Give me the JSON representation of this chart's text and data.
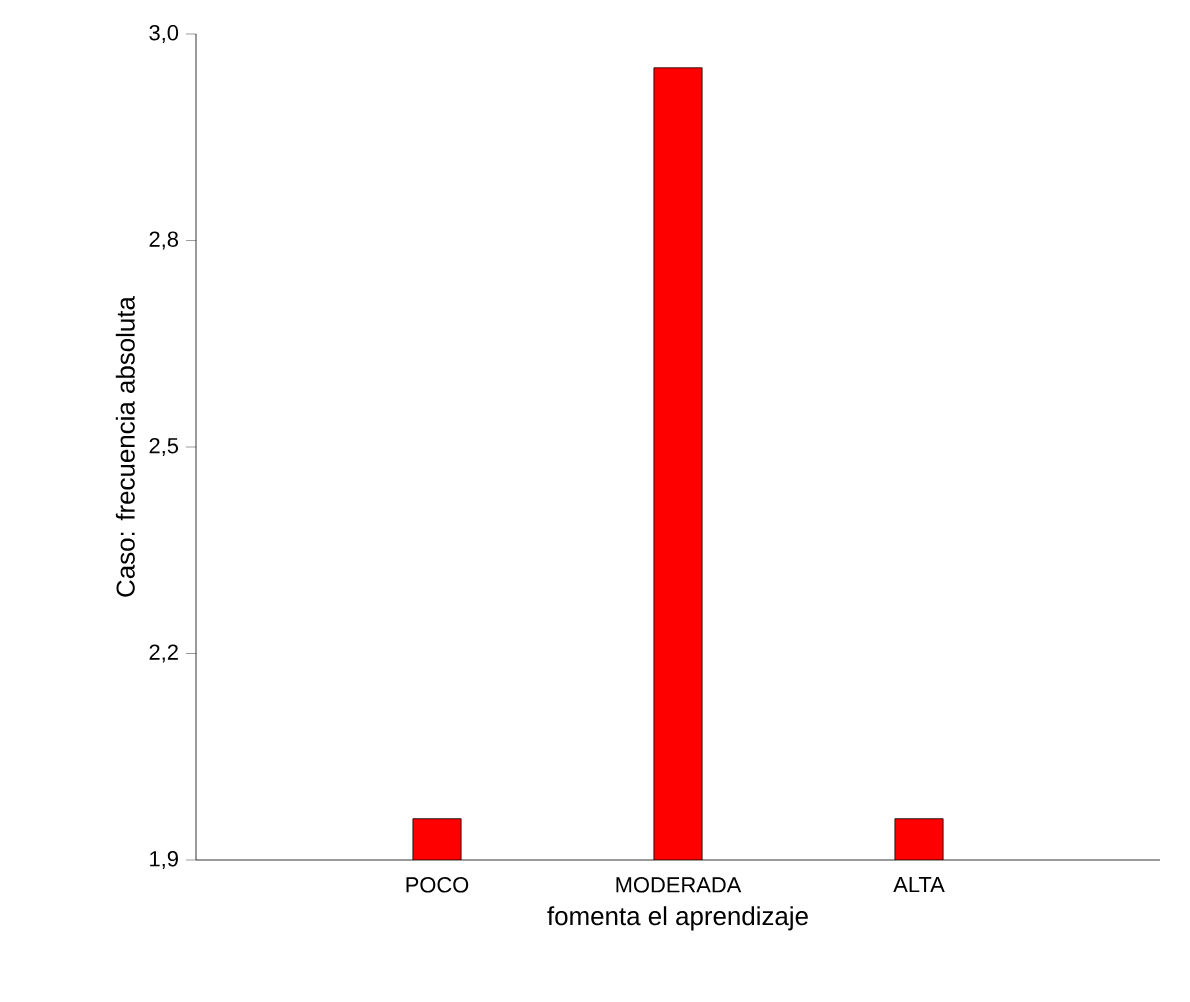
{
  "chart_data": {
    "type": "bar",
    "xlabel": "fomenta el aprendizaje",
    "ylabel": "Caso: frecuencia absoluta",
    "categories": [
      "POCO",
      "MODERADA",
      "ALTA"
    ],
    "values": [
      1.98,
      2.98,
      1.98
    ],
    "color": "#ff0000",
    "ylim": [
      1.925,
      3.025
    ],
    "yticks": [
      {
        "value": 1.925,
        "label": "1,9"
      },
      {
        "value": 2.2,
        "label": "2,2"
      },
      {
        "value": 2.475,
        "label": "2,5"
      },
      {
        "value": 2.75,
        "label": "2,8"
      },
      {
        "value": 3.025,
        "label": "3,0"
      }
    ],
    "grid": false
  }
}
